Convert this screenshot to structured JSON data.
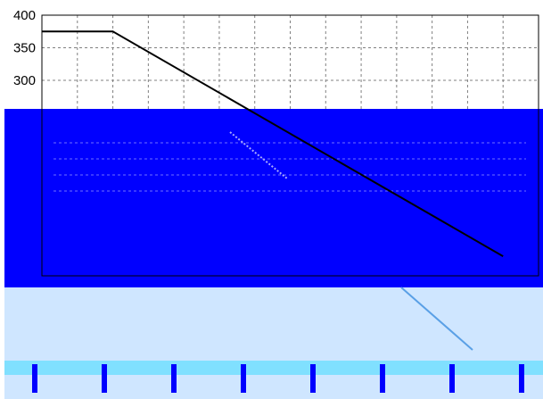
{
  "chart_data": {
    "type": "line",
    "title": "",
    "xlabel": "",
    "ylabel": "",
    "ylim": [
      0,
      400
    ],
    "y_ticks": [
      400,
      350,
      300
    ],
    "x_grid_count": 14,
    "grid": true,
    "grid_style": "dashed",
    "series": [
      {
        "color": "#000000",
        "x": [
          0,
          2,
          13
        ],
        "y": [
          375,
          375,
          30
        ]
      }
    ],
    "colors": {
      "line": "#000000",
      "grid": "#808080",
      "axis": "#000000",
      "corruption_primary": "#0000ff",
      "corruption_light": "#cfe6ff",
      "corruption_cyan": "#80e0ff"
    }
  }
}
